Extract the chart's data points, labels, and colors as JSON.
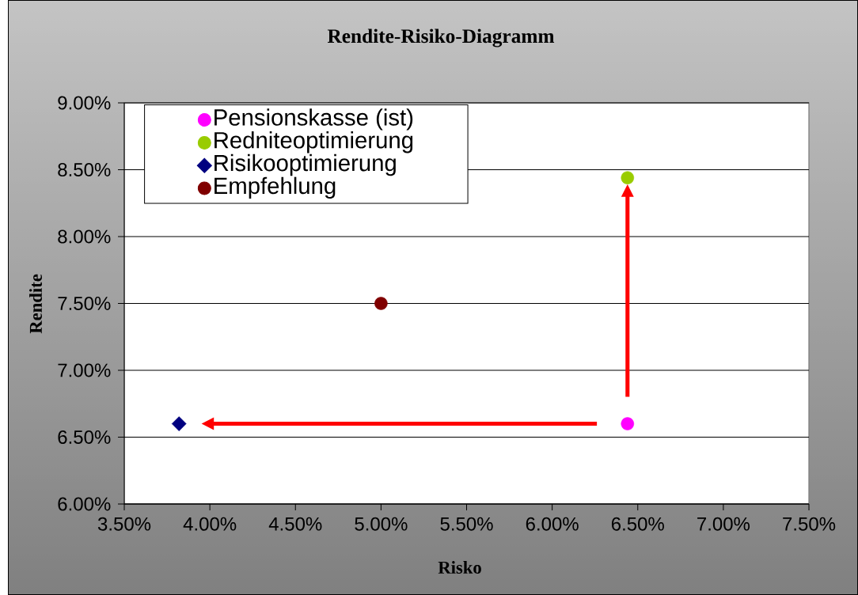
{
  "chart_data": {
    "type": "scatter",
    "title": "Rendite-Risiko-Diagramm",
    "xlabel": "Risko",
    "ylabel": "Rendite",
    "series": [
      {
        "name": "Pensionskasse (ist)",
        "color": "#ff00ff",
        "marker": "circle",
        "x": [
          6.44
        ],
        "values": [
          6.6
        ]
      },
      {
        "name": "Redniteoptimierung",
        "color": "#99cc00",
        "marker": "circle",
        "x": [
          6.44
        ],
        "values": [
          8.44
        ]
      },
      {
        "name": "Risikooptimierung",
        "color": "#000080",
        "marker": "diamond",
        "x": [
          3.82
        ],
        "values": [
          6.6
        ]
      },
      {
        "name": "Empfehlung",
        "color": "#800000",
        "marker": "circle",
        "x": [
          5.0
        ],
        "values": [
          7.5
        ]
      }
    ],
    "xlim": [
      3.5,
      7.5
    ],
    "ylim": [
      6,
      9
    ],
    "xticks": [
      {
        "value": 3.5,
        "label": "3.50%"
      },
      {
        "value": 4.0,
        "label": "4.00%"
      },
      {
        "value": 4.5,
        "label": "4.50%"
      },
      {
        "value": 5.0,
        "label": "5.00%"
      },
      {
        "value": 5.5,
        "label": "5.50%"
      },
      {
        "value": 6.0,
        "label": "6.00%"
      },
      {
        "value": 6.5,
        "label": "6.50%"
      },
      {
        "value": 7.0,
        "label": "7.00%"
      },
      {
        "value": 7.5,
        "label": "7.50%"
      }
    ],
    "yticks": [
      {
        "value": 6.0,
        "label": "6.00%"
      },
      {
        "value": 6.5,
        "label": "6.50%"
      },
      {
        "value": 7.0,
        "label": "7.00%"
      },
      {
        "value": 7.5,
        "label": "7.50%"
      },
      {
        "value": 8.0,
        "label": "8.00%"
      },
      {
        "value": 8.5,
        "label": "8.50%"
      },
      {
        "value": 9.0,
        "label": "9.00%"
      }
    ],
    "grid": "y",
    "legend": "top left"
  }
}
